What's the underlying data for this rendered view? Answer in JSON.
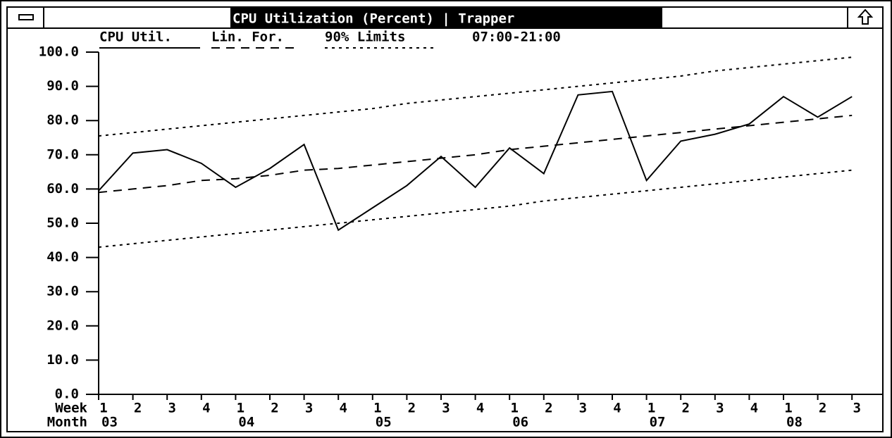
{
  "chart_data": {
    "type": "line",
    "title": "CPU Utilization (Percent) | Trapper",
    "subtitle": "07:00-21:00",
    "x_row_labels": [
      "Week",
      "Month"
    ],
    "categories": [
      "1",
      "2",
      "3",
      "4",
      "1",
      "2",
      "3",
      "4",
      "1",
      "2",
      "3",
      "4",
      "1",
      "2",
      "3",
      "4",
      "1",
      "2",
      "3",
      "4",
      "1",
      "2",
      "3"
    ],
    "months": [
      "03",
      null,
      null,
      null,
      "04",
      null,
      null,
      null,
      "05",
      null,
      null,
      null,
      "06",
      null,
      null,
      null,
      "07",
      null,
      null,
      null,
      "08",
      null,
      null
    ],
    "series": [
      {
        "name": "CPU Util.",
        "color": "#000000",
        "dash": "solid",
        "values": [
          59.5,
          70.5,
          71.5,
          67.5,
          60.5,
          66,
          73,
          48,
          54.5,
          61,
          69.5,
          60.5,
          72,
          64.5,
          87.5,
          88.5,
          62.5,
          74,
          76,
          79,
          87,
          81,
          87
        ]
      },
      {
        "name": "Lin. For.",
        "color": "#000000",
        "dash": "dashed",
        "values": [
          59,
          60,
          61,
          62.5,
          63,
          64,
          65.5,
          66,
          67,
          68,
          69,
          70,
          71.5,
          72.5,
          73.5,
          74.5,
          75.5,
          76.5,
          77.5,
          78.5,
          79.5,
          80.5,
          81.5
        ]
      },
      {
        "name": "90% Limits",
        "color": "#000000",
        "dash": "dotted",
        "values": [
          75.5,
          76.5,
          77.5,
          78.5,
          79.5,
          80.5,
          81.5,
          82.5,
          83.5,
          85,
          86,
          87,
          88,
          89,
          90,
          91,
          92,
          93,
          94.5,
          95.5,
          96.5,
          97.5,
          98.5
        ],
        "lower": [
          43,
          44,
          45,
          46,
          47,
          48,
          49,
          50,
          51,
          52,
          53,
          54,
          55,
          56.5,
          57.5,
          58.5,
          59.5,
          60.5,
          61.5,
          62.5,
          63.5,
          64.5,
          65.5
        ]
      }
    ],
    "ylim": [
      0,
      100
    ],
    "yticks": [
      {
        "value": 0,
        "label": "0.0"
      },
      {
        "value": 10,
        "label": "10.0"
      },
      {
        "value": 20,
        "label": "20.0"
      },
      {
        "value": 30,
        "label": "30.0"
      },
      {
        "value": 40,
        "label": "40.0"
      },
      {
        "value": 50,
        "label": "50.0"
      },
      {
        "value": 60,
        "label": "60.0"
      },
      {
        "value": 70,
        "label": "70.0"
      },
      {
        "value": 80,
        "label": "80.0"
      },
      {
        "value": 90,
        "label": "90.0"
      },
      {
        "value": 100,
        "label": "100.0"
      }
    ],
    "grid": false
  }
}
